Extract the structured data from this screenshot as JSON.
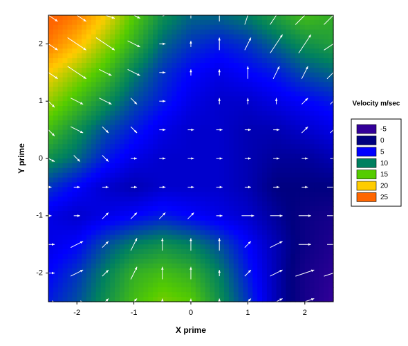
{
  "chart_data": {
    "type": "contour",
    "xlabel": "X prime",
    "ylabel": "Y prime",
    "legend_title": "Velocity m/sec",
    "xlim": [
      -2.5,
      2.5
    ],
    "ylim": [
      -2.5,
      2.5
    ],
    "xticks": [
      -2,
      -1,
      0,
      1,
      2
    ],
    "yticks": [
      -2,
      -1,
      0,
      1,
      2
    ],
    "levels": [
      -5,
      0,
      5,
      10,
      15,
      20,
      25
    ],
    "level_colors": [
      "#330099",
      "#000080",
      "#0000ff",
      "#008060",
      "#55cc00",
      "#ffcc00",
      "#ff6600"
    ],
    "x": [
      -2.5,
      -2,
      -1.5,
      -1,
      -0.5,
      0,
      0.5,
      1,
      1.5,
      2,
      2.5
    ],
    "y": [
      2.5,
      2,
      1.5,
      1,
      0.5,
      0,
      -0.5,
      -1,
      -1.5,
      -2,
      -2.5
    ],
    "z": [
      [
        26,
        24,
        20,
        15,
        11,
        9,
        9,
        10,
        12,
        14,
        13
      ],
      [
        24,
        21,
        17,
        13,
        9,
        7,
        6,
        7,
        9,
        11,
        12
      ],
      [
        20,
        17,
        14,
        10,
        7,
        5,
        4,
        5,
        6,
        8,
        9
      ],
      [
        17,
        14,
        11,
        8,
        6,
        4,
        3,
        3,
        4,
        5,
        6
      ],
      [
        14,
        11,
        8,
        6,
        4,
        3,
        3,
        2,
        2,
        3,
        4
      ],
      [
        11,
        9,
        6,
        4,
        3,
        3,
        3,
        2,
        1,
        1,
        2
      ],
      [
        7,
        5,
        3,
        2,
        3,
        3,
        3,
        2,
        0,
        0,
        0
      ],
      [
        4,
        3,
        4,
        5,
        6,
        5,
        4,
        3,
        1,
        -1,
        -2
      ],
      [
        4,
        5,
        8,
        10,
        11,
        10,
        8,
        5,
        2,
        -1,
        -3
      ],
      [
        5,
        7,
        10,
        13,
        14,
        13,
        10,
        6,
        2,
        -2,
        -4
      ],
      [
        6,
        8,
        11,
        14,
        16,
        15,
        11,
        7,
        2,
        -2,
        -5
      ]
    ],
    "u": [
      [
        3,
        3,
        3,
        2,
        1,
        0,
        0,
        1,
        2,
        3,
        3
      ],
      [
        3,
        3,
        3,
        2,
        1,
        0,
        0,
        1,
        2,
        2,
        3
      ],
      [
        3,
        3,
        2,
        2,
        1,
        0,
        0,
        0,
        1,
        1,
        2
      ],
      [
        2,
        2,
        2,
        1,
        1,
        0,
        0,
        0,
        0,
        1,
        1
      ],
      [
        2,
        2,
        1,
        1,
        1,
        1,
        1,
        1,
        1,
        1,
        1
      ],
      [
        2,
        1,
        1,
        1,
        1,
        1,
        1,
        1,
        1,
        1,
        1
      ],
      [
        1,
        1,
        1,
        1,
        1,
        1,
        1,
        1,
        1,
        1,
        2
      ],
      [
        1,
        1,
        1,
        1,
        1,
        1,
        1,
        2,
        2,
        2,
        2
      ],
      [
        2,
        2,
        1,
        1,
        0,
        0,
        0,
        1,
        2,
        2,
        2
      ],
      [
        2,
        2,
        1,
        1,
        0,
        0,
        0,
        1,
        2,
        3,
        3
      ],
      [
        2,
        2,
        1,
        1,
        0,
        0,
        0,
        1,
        2,
        3,
        3
      ]
    ],
    "v": [
      [
        -2,
        -2,
        -1,
        -1,
        0,
        1,
        2,
        3,
        3,
        3,
        3
      ],
      [
        -2,
        -2,
        -2,
        -1,
        0,
        1,
        2,
        2,
        3,
        3,
        2
      ],
      [
        -2,
        -2,
        -1,
        -1,
        0,
        1,
        1,
        2,
        2,
        2,
        2
      ],
      [
        -2,
        -1,
        -1,
        -1,
        0,
        0,
        1,
        1,
        1,
        1,
        1
      ],
      [
        -2,
        -1,
        -1,
        -1,
        0,
        0,
        0,
        0,
        0,
        1,
        1
      ],
      [
        -1,
        -1,
        -1,
        0,
        0,
        0,
        0,
        0,
        0,
        0,
        0
      ],
      [
        0,
        0,
        0,
        0,
        0,
        0,
        0,
        0,
        0,
        0,
        0
      ],
      [
        0,
        0,
        1,
        1,
        1,
        1,
        0,
        0,
        0,
        0,
        0
      ],
      [
        0,
        1,
        1,
        2,
        2,
        2,
        2,
        1,
        1,
        0,
        0
      ],
      [
        0,
        1,
        1,
        2,
        2,
        2,
        1,
        1,
        1,
        1,
        1
      ],
      [
        0,
        0,
        1,
        1,
        1,
        1,
        1,
        1,
        1,
        1,
        1
      ]
    ]
  }
}
